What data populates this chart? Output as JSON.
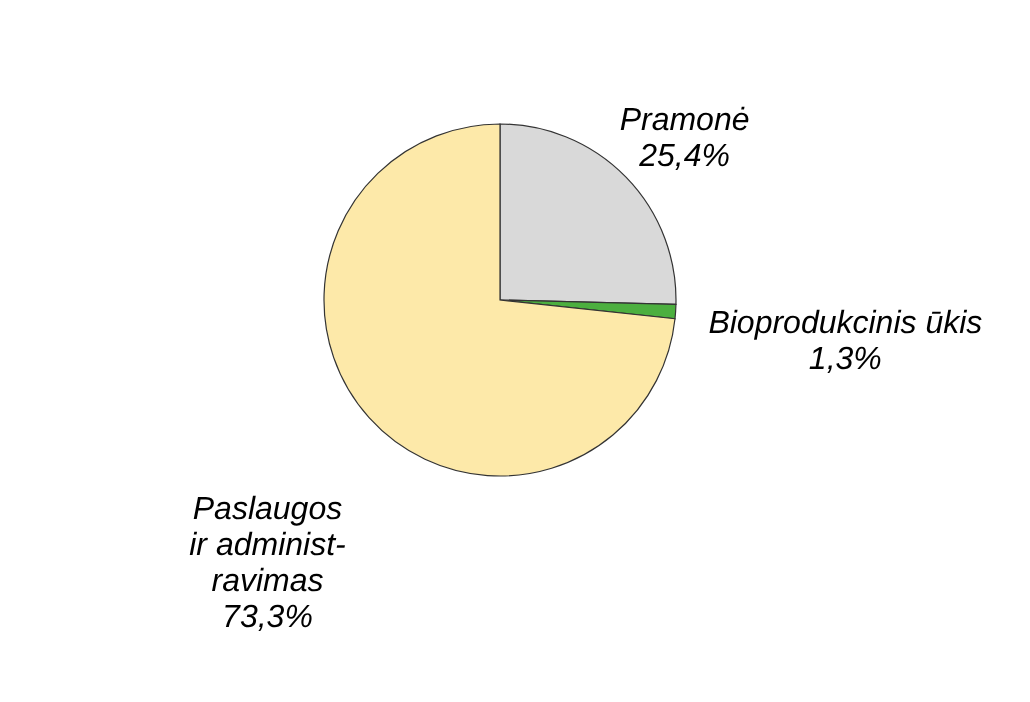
{
  "chart_data": {
    "type": "pie",
    "categories": [
      "Pramonė",
      "Bioprodukcinis ūkis",
      "Paslaugos\nir administ-\nravimas"
    ],
    "values": [
      25.4,
      1.3,
      73.3
    ],
    "value_labels": [
      "25,4%",
      "1,3%",
      "73,3%"
    ],
    "colors": [
      "#d9d9d9",
      "#4caf3f",
      "#fde9a9"
    ]
  }
}
